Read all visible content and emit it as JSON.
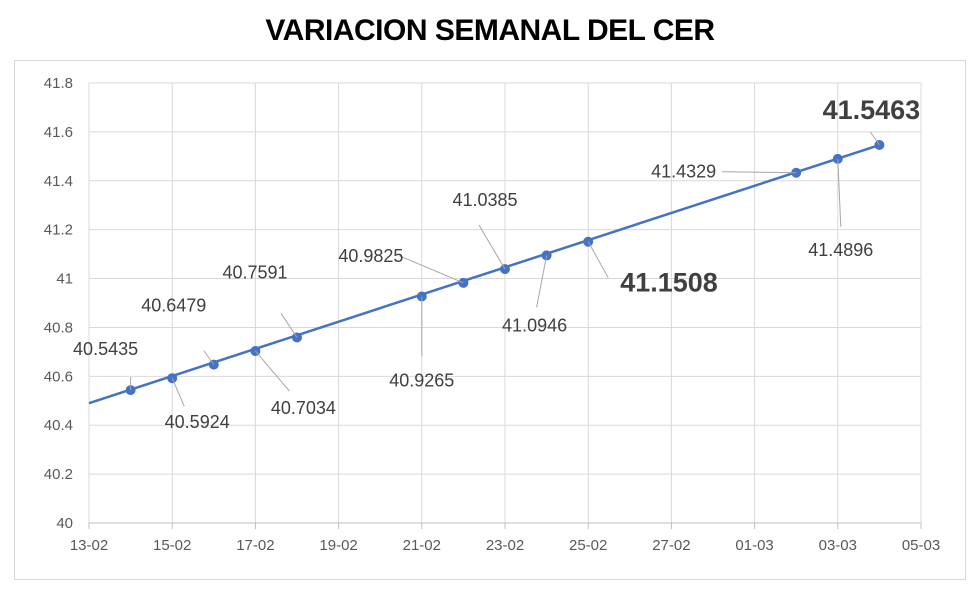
{
  "chart_data": {
    "type": "line",
    "title": "VARIACION SEMANAL DEL CER",
    "xlabel": "",
    "ylabel": "",
    "x_ticks": [
      "13-02",
      "15-02",
      "17-02",
      "19-02",
      "21-02",
      "23-02",
      "25-02",
      "27-02",
      "01-03",
      "03-03",
      "05-03"
    ],
    "y_ticks": [
      "40",
      "40.2",
      "40.4",
      "40.6",
      "40.8",
      "41",
      "41.2",
      "41.4",
      "41.6",
      "41.8"
    ],
    "ylim": [
      40,
      41.8
    ],
    "xlim": [
      "13-02",
      "05-03"
    ],
    "grid": "vertical and horizontal",
    "color": "#4472c4",
    "trend_line": {
      "x": [
        "13-02",
        "04-03"
      ],
      "y": [
        40.49,
        41.5463
      ]
    },
    "points": [
      {
        "x": "14-02",
        "y": 40.5435,
        "label": "40.5435"
      },
      {
        "x": "15-02",
        "y": 40.5924,
        "label": "40.5924"
      },
      {
        "x": "16-02",
        "y": 40.6479,
        "label": "40.6479"
      },
      {
        "x": "17-02",
        "y": 40.7034,
        "label": "40.7034"
      },
      {
        "x": "18-02",
        "y": 40.7591,
        "label": "40.7591"
      },
      {
        "x": "21-02",
        "y": 40.9265,
        "label": "40.9265"
      },
      {
        "x": "22-02",
        "y": 40.9825,
        "label": "40.9825"
      },
      {
        "x": "23-02",
        "y": 41.0385,
        "label": "41.0385"
      },
      {
        "x": "24-02",
        "y": 41.0946,
        "label": "41.0946"
      },
      {
        "x": "25-02",
        "y": 41.1508,
        "label": "41.1508",
        "emphasis": true
      },
      {
        "x": "02-03",
        "y": 41.4329,
        "label": "41.4329"
      },
      {
        "x": "03-03",
        "y": 41.4896,
        "label": "41.4896"
      },
      {
        "x": "04-03",
        "y": 41.5463,
        "label": "41.5463",
        "emphasis": true
      }
    ]
  }
}
